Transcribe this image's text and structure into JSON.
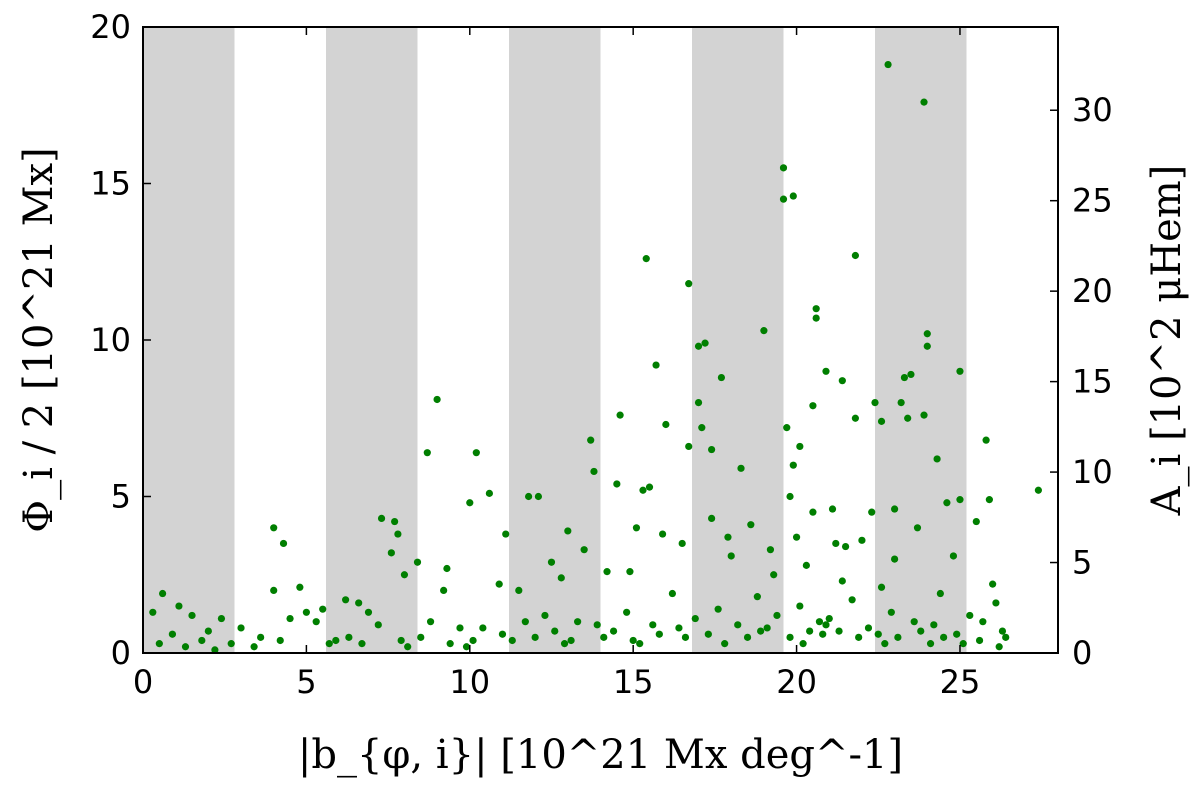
{
  "chart_data": {
    "type": "scatter",
    "title": "",
    "xlabel": "|b_{φ, i}| [10^21 Mx deg^-1]",
    "ylabel": "Φ_i / 2 [10^21 Mx]",
    "y2label": "A_i [10^2 μHem]",
    "xlim": [
      0,
      28
    ],
    "ylim": [
      0,
      20
    ],
    "y2lim": [
      0,
      34.6
    ],
    "x_ticks": [
      "0",
      "5",
      "10",
      "15",
      "20",
      "25"
    ],
    "y_ticks": [
      "0",
      "5",
      "10",
      "15",
      "20"
    ],
    "y2_ticks": [
      "0",
      "5",
      "10",
      "15",
      "20",
      "25",
      "30"
    ],
    "grid": false,
    "legend": "none",
    "shaded_bands": [
      [
        0,
        2.8
      ],
      [
        5.6,
        8.4
      ],
      [
        11.2,
        14.0
      ],
      [
        16.8,
        19.6
      ],
      [
        22.4,
        25.2
      ]
    ],
    "colors": {
      "points": "#007f00",
      "bands": "#d3d3d3"
    },
    "series": [
      {
        "x": [
          22.8,
          23.9,
          19.6,
          19.9,
          19.6,
          15.4,
          21.8,
          16.7,
          20.6,
          20.6,
          17.2,
          19.0,
          24.0,
          24.0,
          17.0,
          15.7,
          20.9,
          25.0,
          23.5,
          23.3,
          9.0,
          23.2,
          17.7,
          21.4,
          17.0,
          22.4,
          16.0,
          17.1,
          20.5,
          14.6,
          22.6,
          21.8,
          16.7,
          23.9,
          23.4,
          13.7,
          19.7,
          20.1,
          25.8,
          17.4,
          10.2,
          13.8,
          24.3,
          19.9,
          15.5,
          18.3,
          8.7,
          27.4,
          14.5,
          11.8,
          12.1,
          15.3,
          23.0,
          19.8,
          7.3,
          10.6,
          25.0,
          4.0,
          24.6,
          20.5,
          22.3,
          21.1,
          25.9,
          17.4,
          7.7,
          11.1,
          18.6,
          13.0,
          4.3,
          15.1,
          10.0,
          7.8,
          25.5,
          15.9,
          19.2,
          20.0,
          22.0,
          23.7,
          21.2,
          17.9,
          8.4,
          16.5,
          13.5,
          7.6,
          9.3,
          8.0,
          12.5,
          18.0,
          21.5,
          23.0,
          20.3,
          19.3,
          24.8,
          14.2,
          4.0,
          4.8,
          0.6,
          11.5,
          9.2,
          10.9,
          12.8,
          26.0,
          5.5,
          14.9,
          21.4,
          5.0,
          1.1,
          6.2,
          6.6,
          0.3,
          6.9,
          2.4,
          16.2,
          18.8,
          24.4,
          22.6,
          1.5,
          4.5,
          5.3,
          8.8,
          12.3,
          21.7,
          20.1,
          17.6,
          14.8,
          26.1,
          3.0,
          2.0,
          7.2,
          9.7,
          11.7,
          13.3,
          16.9,
          19.4,
          20.7,
          22.9,
          25.3,
          0.9,
          3.6,
          5.9,
          10.4,
          13.9,
          15.6,
          18.2,
          21.0,
          23.6,
          25.7,
          1.8,
          4.2,
          6.3,
          8.5,
          11.0,
          12.6,
          14.4,
          16.4,
          19.1,
          20.9,
          22.2,
          24.2,
          26.3,
          0.5,
          2.7,
          5.7,
          7.9,
          10.1,
          12.0,
          14.1,
          15.8,
          17.3,
          18.9,
          20.4,
          21.3,
          22.5,
          23.8,
          24.9,
          26.4,
          1.3,
          3.4,
          6.7,
          9.4,
          11.3,
          13.1,
          15.0,
          16.6,
          18.5,
          19.8,
          20.8,
          21.9,
          23.1,
          24.5,
          25.6,
          2.2,
          8.1,
          9.9,
          12.9,
          15.2,
          17.8,
          20.2,
          22.7,
          24.1,
          25.1,
          26.2
        ],
        "y": [
          18.8,
          17.6,
          15.5,
          14.6,
          14.5,
          12.6,
          12.7,
          11.8,
          11.0,
          10.7,
          9.9,
          10.3,
          10.2,
          9.8,
          9.8,
          9.2,
          9.0,
          9.0,
          8.9,
          8.8,
          8.1,
          8.0,
          8.8,
          8.7,
          8.0,
          8.0,
          7.3,
          7.2,
          7.9,
          7.6,
          7.4,
          7.5,
          6.6,
          7.6,
          7.5,
          6.8,
          7.2,
          6.6,
          6.8,
          6.5,
          6.4,
          5.8,
          6.2,
          6.0,
          5.3,
          5.9,
          6.4,
          5.2,
          5.4,
          5.0,
          5.0,
          5.2,
          4.6,
          5.0,
          4.3,
          5.1,
          4.9,
          4.0,
          4.8,
          4.5,
          4.5,
          4.6,
          4.9,
          4.3,
          4.2,
          3.8,
          4.1,
          3.9,
          3.5,
          4.0,
          4.8,
          3.8,
          4.2,
          3.8,
          3.3,
          3.7,
          3.6,
          4.0,
          3.5,
          3.7,
          2.9,
          3.5,
          3.3,
          3.2,
          2.7,
          2.5,
          2.9,
          3.1,
          3.4,
          3.0,
          2.8,
          2.5,
          3.1,
          2.6,
          2.0,
          2.1,
          1.9,
          2.0,
          2.0,
          2.2,
          2.4,
          2.2,
          1.4,
          2.6,
          2.3,
          1.3,
          1.5,
          1.7,
          1.6,
          1.3,
          1.3,
          1.1,
          1.9,
          1.8,
          1.9,
          2.1,
          1.2,
          1.1,
          1.0,
          1.0,
          1.2,
          1.7,
          1.5,
          1.4,
          1.3,
          1.6,
          0.8,
          0.7,
          0.9,
          0.8,
          1.0,
          1.0,
          1.1,
          1.2,
          1.0,
          1.3,
          1.2,
          0.6,
          0.5,
          0.4,
          0.8,
          0.9,
          0.9,
          0.9,
          1.1,
          1.0,
          1.0,
          0.4,
          0.4,
          0.5,
          0.5,
          0.6,
          0.7,
          0.7,
          0.8,
          0.8,
          0.9,
          0.8,
          0.9,
          0.7,
          0.3,
          0.3,
          0.3,
          0.4,
          0.4,
          0.5,
          0.5,
          0.6,
          0.6,
          0.7,
          0.7,
          0.7,
          0.6,
          0.7,
          0.6,
          0.5,
          0.2,
          0.2,
          0.3,
          0.3,
          0.4,
          0.4,
          0.4,
          0.5,
          0.5,
          0.5,
          0.6,
          0.5,
          0.5,
          0.5,
          0.4,
          0.1,
          0.2,
          0.2,
          0.3,
          0.3,
          0.3,
          0.3,
          0.3,
          0.3,
          0.3,
          0.2
        ]
      }
    ]
  }
}
